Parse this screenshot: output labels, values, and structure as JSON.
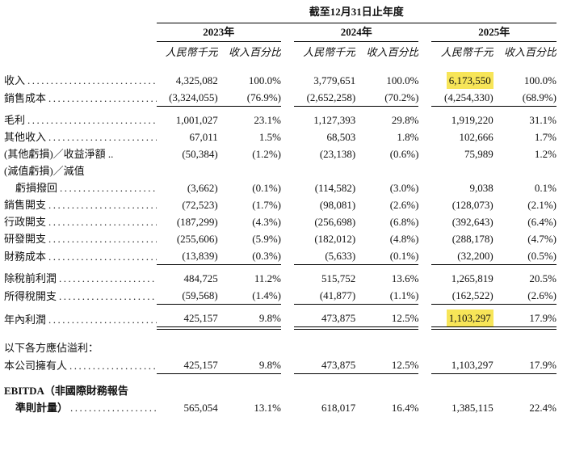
{
  "title": "截至12月31日止年度",
  "groups": [
    {
      "year": "2023年",
      "amount_header": "人民幣千元",
      "pct_header": "收入百分比"
    },
    {
      "year": "2024年",
      "amount_header": "人民幣千元",
      "pct_header": "收入百分比"
    },
    {
      "year": "2025年",
      "amount_header": "人民幣千元",
      "pct_header": "收入百分比"
    }
  ],
  "leader": "............................................",
  "highlight_color": "#F7E558",
  "rows": [
    {
      "label": "收入",
      "dots": true,
      "cells": [
        "4,325,082",
        "100.0%",
        "3,779,651",
        "100.0%",
        "6,173,550",
        "100.0%"
      ],
      "highlight": [
        4
      ],
      "rule": "none",
      "pad": ""
    },
    {
      "label": "銷售成本",
      "dots": true,
      "cells": [
        "(3,324,055)",
        "(76.9%)",
        "(2,652,258)",
        "(70.2%)",
        "(4,254,330)",
        "(68.9%)"
      ],
      "highlight": [],
      "rule": "single",
      "pad": ""
    },
    {
      "label": "毛利",
      "dots": true,
      "cells": [
        "1,001,027",
        "23.1%",
        "1,127,393",
        "29.8%",
        "1,919,220",
        "31.1%"
      ],
      "highlight": [],
      "rule": "none",
      "pad": "s"
    },
    {
      "label": "其他收入",
      "dots": true,
      "cells": [
        "67,011",
        "1.5%",
        "68,503",
        "1.8%",
        "102,666",
        "1.7%"
      ],
      "highlight": [],
      "rule": "none",
      "pad": ""
    },
    {
      "label": "(其他虧損)／收益淨額 ..",
      "dots": false,
      "cells": [
        "(50,384)",
        "(1.2%)",
        "(23,138)",
        "(0.6%)",
        "75,989",
        "1.2%"
      ],
      "highlight": [],
      "rule": "none",
      "pad": ""
    },
    {
      "label": "(減值虧損)／減值",
      "dots": false,
      "cells": [
        "",
        "",
        "",
        "",
        "",
        ""
      ],
      "highlight": [],
      "rule": "none",
      "pad": ""
    },
    {
      "label": "虧損撥回",
      "indent": true,
      "dots": true,
      "cells": [
        "(3,662)",
        "(0.1%)",
        "(114,582)",
        "(3.0%)",
        "9,038",
        "0.1%"
      ],
      "highlight": [],
      "rule": "none",
      "pad": ""
    },
    {
      "label": "銷售開支",
      "dots": true,
      "cells": [
        "(72,523)",
        "(1.7%)",
        "(98,081)",
        "(2.6%)",
        "(128,073)",
        "(2.1%)"
      ],
      "highlight": [],
      "rule": "none",
      "pad": ""
    },
    {
      "label": "行政開支",
      "dots": true,
      "cells": [
        "(187,299)",
        "(4.3%)",
        "(256,698)",
        "(6.8%)",
        "(392,643)",
        "(6.4%)"
      ],
      "highlight": [],
      "rule": "none",
      "pad": ""
    },
    {
      "label": "研發開支",
      "dots": true,
      "cells": [
        "(255,606)",
        "(5.9%)",
        "(182,012)",
        "(4.8%)",
        "(288,178)",
        "(4.7%)"
      ],
      "highlight": [],
      "rule": "none",
      "pad": ""
    },
    {
      "label": "財務成本",
      "dots": true,
      "cells": [
        "(13,839)",
        "(0.3%)",
        "(5,633)",
        "(0.1%)",
        "(32,200)",
        "(0.5%)"
      ],
      "highlight": [],
      "rule": "single",
      "pad": ""
    },
    {
      "label": "除稅前利潤",
      "dots": true,
      "cells": [
        "484,725",
        "11.2%",
        "515,752",
        "13.6%",
        "1,265,819",
        "20.5%"
      ],
      "highlight": [],
      "rule": "none",
      "pad": "s"
    },
    {
      "label": "所得稅開支",
      "dots": true,
      "cells": [
        "(59,568)",
        "(1.4%)",
        "(41,877)",
        "(1.1%)",
        "(162,522)",
        "(2.6%)"
      ],
      "highlight": [],
      "rule": "single",
      "pad": ""
    },
    {
      "label": "年內利潤",
      "dots": true,
      "cells": [
        "425,157",
        "9.8%",
        "473,875",
        "12.5%",
        "1,103,297",
        "17.9%"
      ],
      "highlight": [
        4
      ],
      "rule": "double",
      "pad": "s"
    },
    {
      "label": "以下各方應佔溢利：",
      "dots": false,
      "cells": [
        "",
        "",
        "",
        "",
        "",
        ""
      ],
      "highlight": [],
      "rule": "none",
      "pad": "l"
    },
    {
      "label": "本公司擁有人",
      "dots": true,
      "cells": [
        "425,157",
        "9.8%",
        "473,875",
        "12.5%",
        "1,103,297",
        "17.9%"
      ],
      "highlight": [],
      "rule": "single",
      "pad": ""
    },
    {
      "label": "EBITDA（非國際財務報告",
      "bold": true,
      "dots": false,
      "cells": [
        "",
        "",
        "",
        "",
        "",
        ""
      ],
      "highlight": [],
      "rule": "none",
      "pad": "m"
    },
    {
      "label": "準則計量）",
      "bold": true,
      "indent": true,
      "dots": true,
      "cells": [
        "565,054",
        "13.1%",
        "618,017",
        "16.4%",
        "1,385,115",
        "22.4%"
      ],
      "highlight": [],
      "rule": "none",
      "pad": ""
    }
  ]
}
